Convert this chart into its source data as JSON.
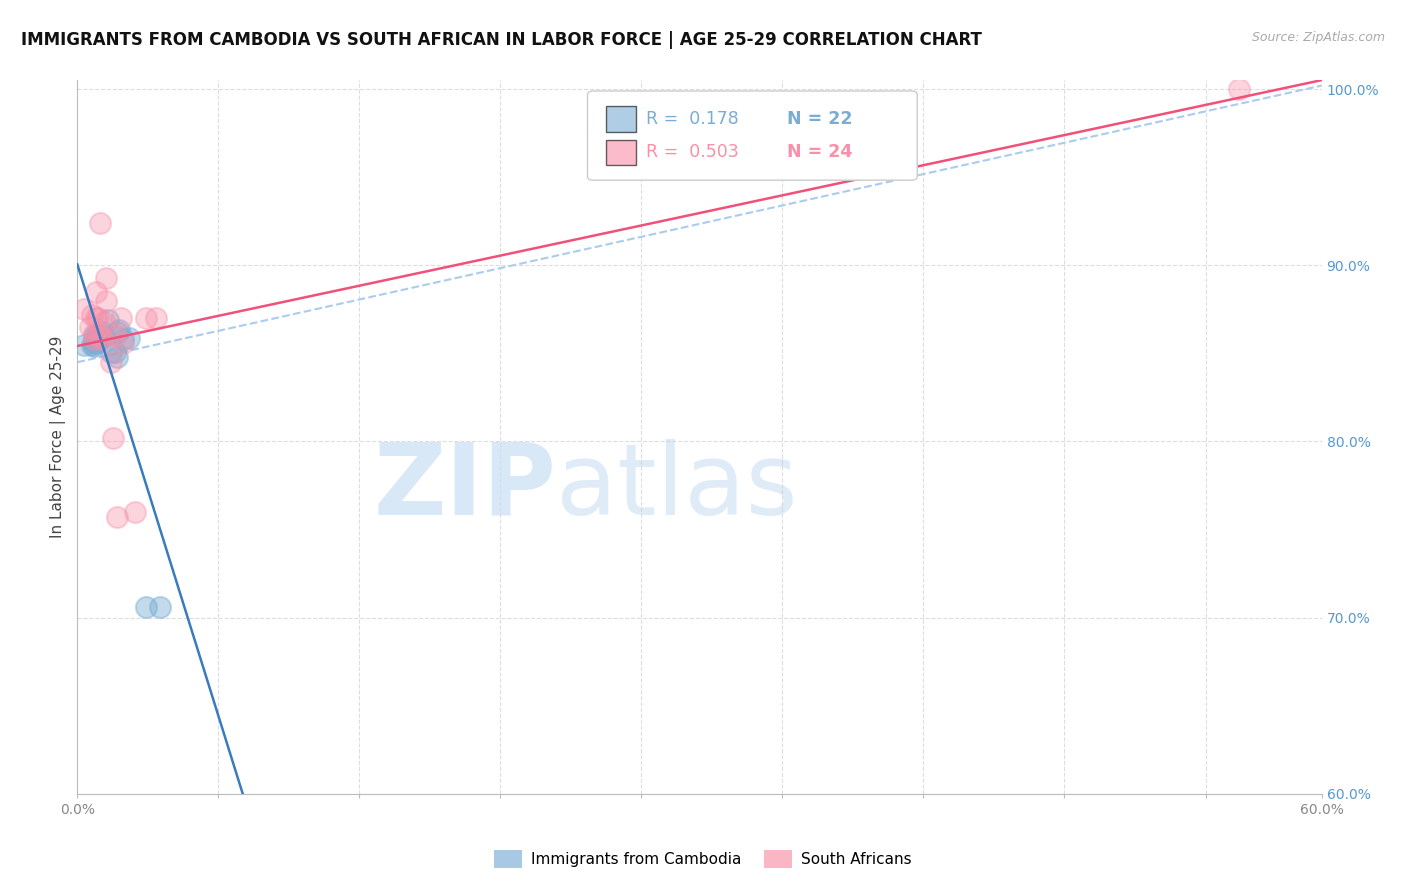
{
  "title": "IMMIGRANTS FROM CAMBODIA VS SOUTH AFRICAN IN LABOR FORCE | AGE 25-29 CORRELATION CHART",
  "source": "Source: ZipAtlas.com",
  "ylabel": "In Labor Force | Age 25-29",
  "xlim": [
    0.0,
    0.6
  ],
  "ylim": [
    0.6,
    1.005
  ],
  "xticks": [
    0.0,
    0.068,
    0.136,
    0.204,
    0.272,
    0.34,
    0.408,
    0.476,
    0.544,
    0.6
  ],
  "yticks": [
    0.6,
    0.7,
    0.8,
    0.9,
    1.0
  ],
  "xtick_show": [
    0.0,
    0.6
  ],
  "cambodia_x": [
    0.003,
    0.007,
    0.008,
    0.008,
    0.008,
    0.008,
    0.009,
    0.009,
    0.009,
    0.01,
    0.012,
    0.013,
    0.015,
    0.016,
    0.018,
    0.019,
    0.019,
    0.02,
    0.022,
    0.025,
    0.033,
    0.04
  ],
  "cambodia_y": [
    0.855,
    0.855,
    0.86,
    0.857,
    0.856,
    0.854,
    0.86,
    0.858,
    0.856,
    0.858,
    0.862,
    0.86,
    0.869,
    0.851,
    0.851,
    0.848,
    0.862,
    0.863,
    0.858,
    0.859,
    0.706,
    0.706
  ],
  "southafrican_x": [
    0.003,
    0.006,
    0.007,
    0.008,
    0.008,
    0.009,
    0.009,
    0.01,
    0.011,
    0.011,
    0.012,
    0.013,
    0.014,
    0.014,
    0.016,
    0.017,
    0.018,
    0.019,
    0.021,
    0.022,
    0.028,
    0.033,
    0.038,
    0.56
  ],
  "southafrican_y": [
    0.875,
    0.865,
    0.872,
    0.861,
    0.858,
    0.87,
    0.885,
    0.87,
    0.924,
    0.86,
    0.858,
    0.868,
    0.893,
    0.88,
    0.845,
    0.802,
    0.86,
    0.757,
    0.87,
    0.856,
    0.76,
    0.87,
    0.87,
    1.0
  ],
  "cambodia_R": 0.178,
  "cambodia_N": 22,
  "southafrican_R": 0.503,
  "southafrican_N": 24,
  "cambodia_color": "#7aadd4",
  "southafrican_color": "#f98fa8",
  "trend_cambodia_color": "#3a7bbf",
  "trend_southafrican_color": "#f0507a",
  "dashed_line_color": "#aaccee",
  "background_color": "#ffffff",
  "grid_color": "#dddddd",
  "title_fontsize": 12,
  "axis_label_fontsize": 11,
  "tick_fontsize": 10,
  "right_tick_color": "#5599cc"
}
